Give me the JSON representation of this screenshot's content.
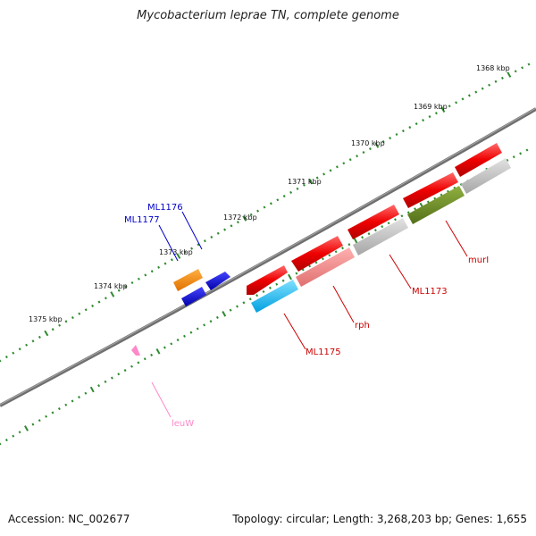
{
  "title": "Mycobacterium leprae TN, complete genome",
  "footer": {
    "accession": "Accession: NC_002677",
    "summary": "Topology: circular; Length: 3,268,203 bp; Genes: 1,655"
  },
  "colors": {
    "backbone": "#777777",
    "tick": "#2e8b2e",
    "red_cds": "#ee0000",
    "pink_cds": "#f08080",
    "grey_cds": "#bbbbbb",
    "olive_cds": "#6b8e23",
    "cyan_cds": "#00bfff",
    "blue_cds": "#0000dd",
    "orange_cds": "#ff8c00",
    "trna": "#ff88c8",
    "label_red": "#cc0000",
    "label_blue": "#0000cc",
    "label_pink": "#ff88c8"
  },
  "ticks": [
    {
      "label": "1368 kbp"
    },
    {
      "label": "1369 kbp"
    },
    {
      "label": "1370 kbp"
    },
    {
      "label": "1371 kbp"
    },
    {
      "label": "1372 kbp"
    },
    {
      "label": "1373 kbp"
    },
    {
      "label": "1374 kbp"
    },
    {
      "label": "1375 kbp"
    }
  ],
  "gene_labels": {
    "murI": "murI",
    "ML1173": "ML1173",
    "rph": "rph",
    "ML1175": "ML1175",
    "ML1176": "ML1176",
    "ML1177": "ML1177",
    "leuW": "leuW"
  }
}
